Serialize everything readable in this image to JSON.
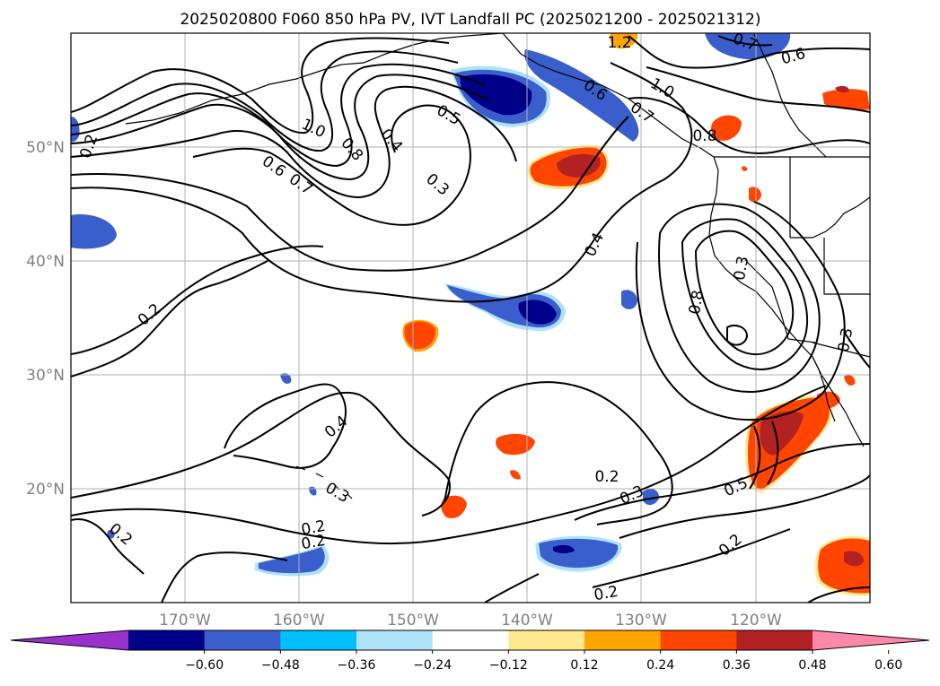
{
  "title": "2025020800 F060 850 hPa PV, IVT Landfall PC (2025021200 - 2025021312)",
  "map": {
    "lon_range": [
      -180,
      -110
    ],
    "lat_range": [
      10,
      60
    ],
    "lon_ticks": [
      "170°W",
      "160°W",
      "150°W",
      "140°W",
      "130°W",
      "120°W"
    ],
    "lat_ticks": [
      "50°N",
      "40°N",
      "30°N",
      "20°N"
    ],
    "grid": true,
    "contour_color": "#000000",
    "contour_labels": [
      "1.2",
      "0.7",
      "0.6",
      "0.6",
      "0.7",
      "1.0",
      "0.8",
      "0.6",
      "0.7",
      "1.0",
      "0.8",
      "0.4",
      "0.5",
      "0.3",
      "0.4",
      "0.8",
      "0.3",
      "0.3",
      "0.2",
      "0.4",
      "0.3",
      "0.2",
      "0.2",
      "0.2",
      "0.2",
      "0.3",
      "0.5",
      "0.2",
      "0.2",
      "0.2"
    ]
  },
  "colorbar": {
    "colors": [
      "#9932cc",
      "#00008b",
      "#3a5fcd",
      "#00bfff",
      "#aee2fa",
      "#ffffff",
      "#ffe98f",
      "#ffa500",
      "#ff4500",
      "#b22222",
      "#ff88aa"
    ],
    "tick_labels": [
      "−0.60",
      "−0.48",
      "−0.36",
      "−0.24",
      "−0.12",
      "0.12",
      "0.24",
      "0.36",
      "0.48",
      "0.60"
    ],
    "extend": "both"
  }
}
